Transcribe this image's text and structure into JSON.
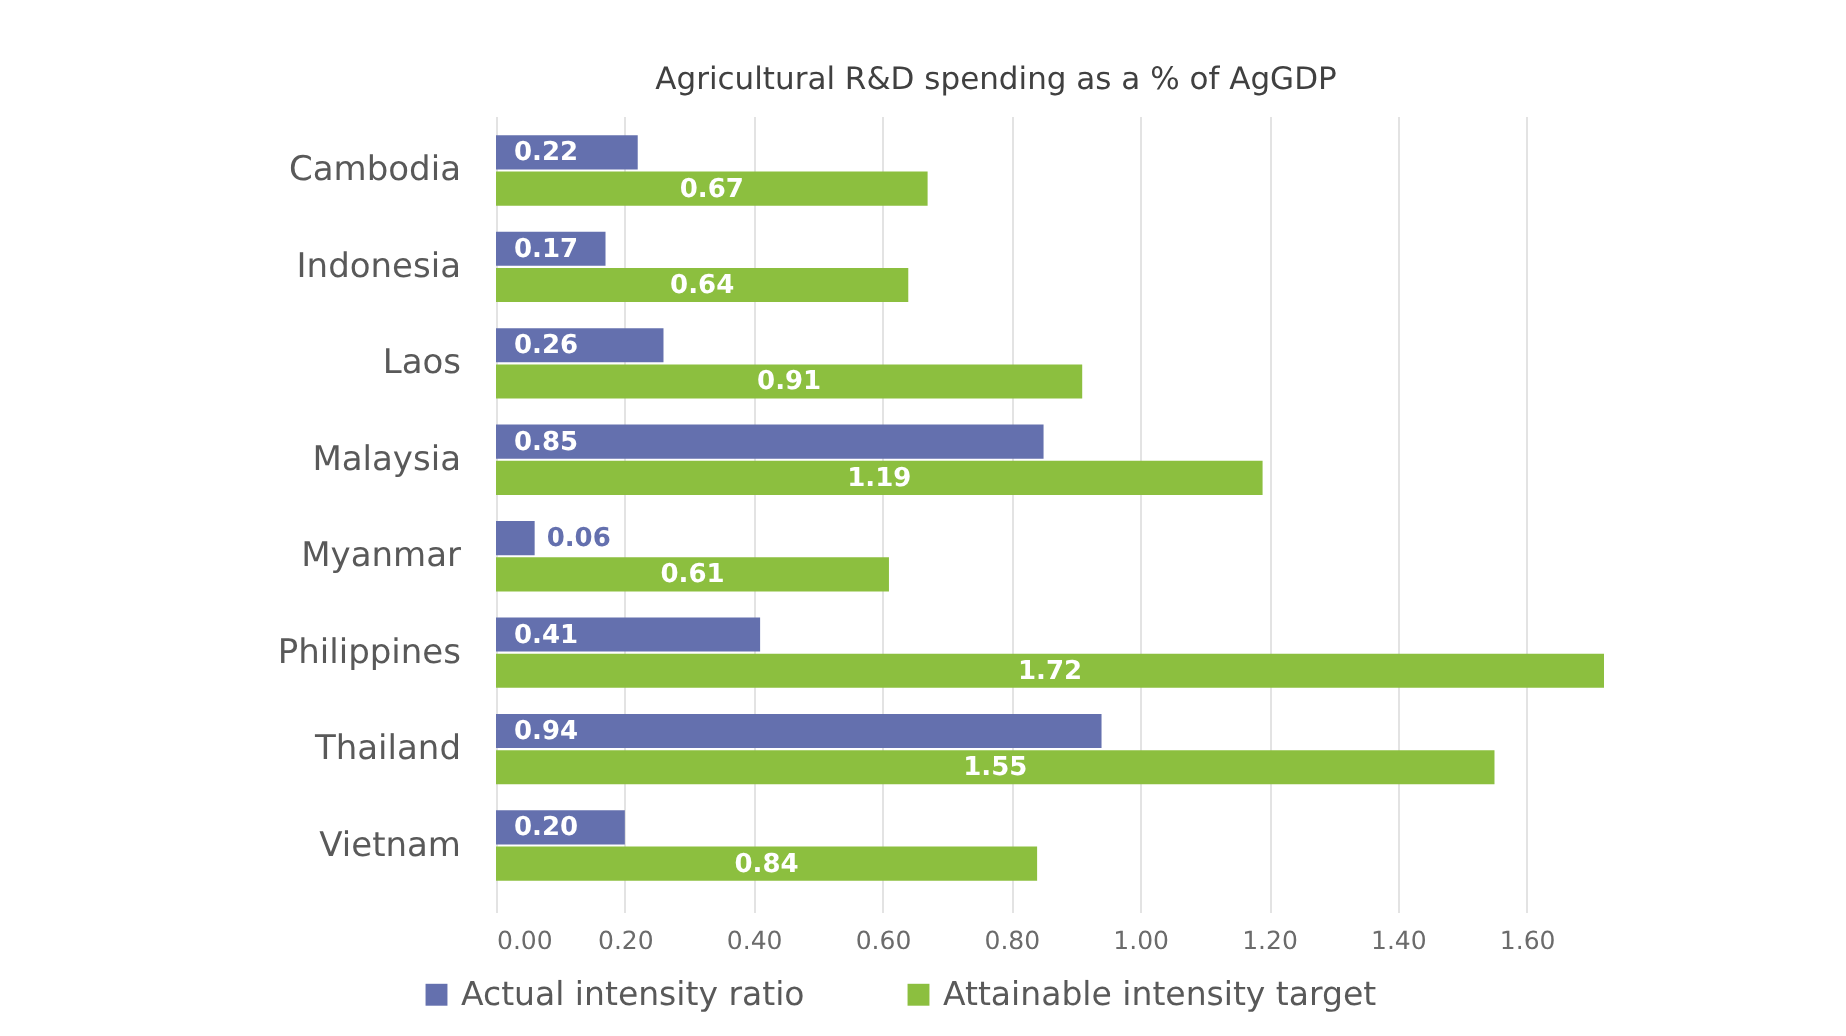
{
  "chart_data": {
    "type": "bar",
    "orientation": "horizontal",
    "title": "Agricultural R&D spending as a % of AgGDP",
    "categories": [
      "Cambodia",
      "Indonesia",
      "Laos",
      "Malaysia",
      "Myanmar",
      "Philippines",
      "Thailand",
      "Vietnam"
    ],
    "series": [
      {
        "name": "Actual intensity ratio",
        "color": "#6470ae",
        "values": [
          0.22,
          0.17,
          0.26,
          0.85,
          0.06,
          0.41,
          0.94,
          0.2
        ],
        "value_labels": [
          "0.22",
          "0.17",
          "0.26",
          "0.85",
          "0.06",
          "0.41",
          "0.94",
          "0.20"
        ]
      },
      {
        "name": "Attainable intensity target",
        "color": "#8cbf3f",
        "values": [
          0.67,
          0.64,
          0.91,
          1.19,
          0.61,
          1.72,
          1.55,
          0.84
        ],
        "value_labels": [
          "0.67",
          "0.64",
          "0.91",
          "1.19",
          "0.61",
          "1.72",
          "1.55",
          "0.84"
        ]
      }
    ],
    "xlim": [
      0,
      1.72
    ],
    "xticks": [
      {
        "value": 0,
        "label": "0.00"
      },
      {
        "value": 0.2,
        "label": "0.20"
      },
      {
        "value": 0.4,
        "label": "0.40"
      },
      {
        "value": 0.6,
        "label": "0.60"
      },
      {
        "value": 0.8,
        "label": "0.80"
      },
      {
        "value": 1,
        "label": "1.00"
      },
      {
        "value": 1.2,
        "label": "1.20"
      },
      {
        "value": 1.4,
        "label": "1.40"
      },
      {
        "value": 1.6,
        "label": "1.60"
      }
    ],
    "grid": "x",
    "legend": "bottom"
  }
}
